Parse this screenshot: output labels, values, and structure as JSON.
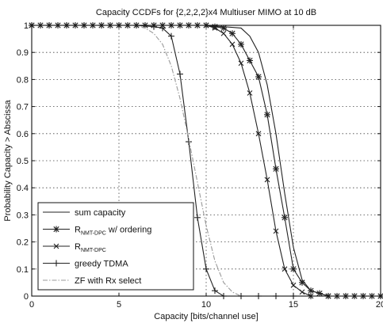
{
  "chart_data": {
    "type": "line",
    "title": "Capacity CCDFs for {2,2,2,2}x4 Multiuser MIMO at 10 dB",
    "xlabel": "Capacity [bits/channel use]",
    "ylabel": "Probability Capacity > Abscissa",
    "xlim": [
      0,
      20
    ],
    "ylim": [
      0,
      1
    ],
    "xticks": [
      0,
      5,
      10,
      15,
      20
    ],
    "xtick_labels": [
      "0",
      "5",
      "10",
      "15",
      "20"
    ],
    "yticks": [
      0,
      0.1,
      0.2,
      0.3,
      0.4,
      0.5,
      0.6,
      0.7,
      0.8,
      0.9,
      1
    ],
    "ytick_labels": [
      "0",
      "0.1",
      "0.2",
      "0.3",
      "0.4",
      "0.5",
      "0.6",
      "0.7",
      "0.8",
      "0.9",
      "1"
    ],
    "grid": true,
    "legend_position": "bottom-left",
    "series": [
      {
        "name": "sum capacity",
        "legend_main": "sum capacity",
        "legend_sub": "",
        "legend_suffix": "",
        "style": "solid",
        "marker": "none",
        "color": "#222222",
        "x": [
          0,
          10,
          12,
          12.5,
          13,
          13.5,
          14,
          14.5,
          15,
          15.5,
          16,
          17,
          20
        ],
        "y": [
          1,
          1,
          0.99,
          0.96,
          0.9,
          0.78,
          0.6,
          0.38,
          0.18,
          0.06,
          0.02,
          0,
          0
        ]
      },
      {
        "name": "RNMT-DPC w/ ordering",
        "legend_main": "R",
        "legend_sub": "NMT-DPC",
        "legend_suffix": " w/ ordering",
        "style": "solid",
        "marker": "asterisk",
        "color": "#222222",
        "x": [
          0,
          0.5,
          1,
          1.5,
          2,
          2.5,
          3,
          3.5,
          4,
          4.5,
          5,
          5.5,
          6,
          6.5,
          7,
          7.5,
          8,
          8.5,
          9,
          9.5,
          10,
          10.5,
          11,
          11.5,
          12,
          12.5,
          13,
          13.5,
          14,
          14.5,
          15,
          15.5,
          16,
          16.5,
          17,
          17.5,
          18,
          18.5,
          19,
          19.5,
          20
        ],
        "y": [
          1,
          1,
          1,
          1,
          1,
          1,
          1,
          1,
          1,
          1,
          1,
          1,
          1,
          1,
          1,
          1,
          1,
          1,
          1,
          1,
          1,
          0.995,
          0.99,
          0.97,
          0.93,
          0.87,
          0.81,
          0.67,
          0.47,
          0.29,
          0.1,
          0.05,
          0.02,
          0.01,
          0,
          0,
          0,
          0,
          0,
          0,
          0
        ]
      },
      {
        "name": "RNMT-DPC",
        "legend_main": "R",
        "legend_sub": "NMT-DPC",
        "legend_suffix": "",
        "style": "solid",
        "marker": "x",
        "color": "#222222",
        "x": [
          0,
          10,
          10.5,
          11,
          11.5,
          12,
          12.5,
          13,
          13.5,
          14,
          14.5,
          15,
          15.5,
          16,
          17,
          20
        ],
        "y": [
          1,
          1,
          0.99,
          0.97,
          0.93,
          0.86,
          0.75,
          0.6,
          0.43,
          0.24,
          0.1,
          0.04,
          0.015,
          0,
          0,
          0
        ]
      },
      {
        "name": "greedy TDMA",
        "legend_main": "greedy TDMA",
        "legend_sub": "",
        "legend_suffix": "",
        "style": "solid",
        "marker": "plus",
        "color": "#222222",
        "x": [
          0,
          1,
          2,
          3,
          4,
          5,
          6,
          7,
          7.5,
          8,
          8.5,
          9,
          9.5,
          10,
          10.5,
          11,
          12,
          13,
          14,
          15,
          16,
          17,
          18,
          19,
          20
        ],
        "y": [
          1,
          1,
          1,
          1,
          1,
          1,
          1,
          0.995,
          0.99,
          0.96,
          0.82,
          0.57,
          0.29,
          0.1,
          0.02,
          0,
          0,
          0,
          0,
          0,
          0,
          0,
          0,
          0,
          0
        ]
      },
      {
        "name": "ZF with Rx select",
        "legend_main": "ZF with Rx select",
        "legend_sub": "",
        "legend_suffix": "",
        "style": "dashdot",
        "marker": "none",
        "color": "#9a9a9a",
        "x": [
          0,
          6,
          6.5,
          7,
          7.5,
          8,
          8.5,
          9,
          9.5,
          10,
          10.5,
          11,
          11.5,
          12,
          13,
          20
        ],
        "y": [
          1,
          1,
          0.99,
          0.97,
          0.93,
          0.85,
          0.73,
          0.58,
          0.42,
          0.26,
          0.13,
          0.05,
          0.015,
          0,
          0,
          0
        ]
      }
    ]
  }
}
